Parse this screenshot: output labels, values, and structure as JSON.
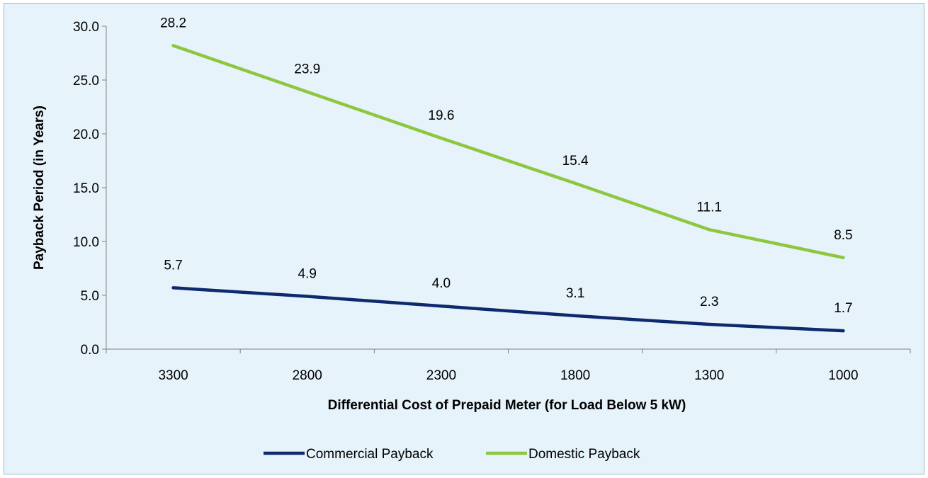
{
  "chart_data": {
    "type": "line",
    "categories": [
      "3300",
      "2800",
      "2300",
      "1800",
      "1300",
      "1000"
    ],
    "series": [
      {
        "name": "Commercial Payback",
        "values": [
          5.7,
          4.9,
          4.0,
          3.1,
          2.3,
          1.7
        ],
        "labels": [
          "5.7",
          "4.9",
          "4.0",
          "3.1",
          "2.3",
          "1.7"
        ],
        "color": "#0d2a6e"
      },
      {
        "name": "Domestic Payback",
        "values": [
          28.2,
          23.9,
          19.6,
          15.4,
          11.1,
          8.5
        ],
        "labels": [
          "28.2",
          "23.9",
          "19.6",
          "15.4",
          "11.1",
          "8.5"
        ],
        "color": "#8dc63f"
      }
    ],
    "xlabel": "Differential Cost of Prepaid Meter (for Load Below 5 kW)",
    "ylabel": "Payback Period (in Years)",
    "ylim": [
      0,
      30
    ],
    "yticks": [
      "0.0",
      "5.0",
      "10.0",
      "15.0",
      "20.0",
      "25.0",
      "30.0"
    ],
    "grid": false,
    "legend_position": "bottom",
    "background_color": "#e6f3fa"
  }
}
